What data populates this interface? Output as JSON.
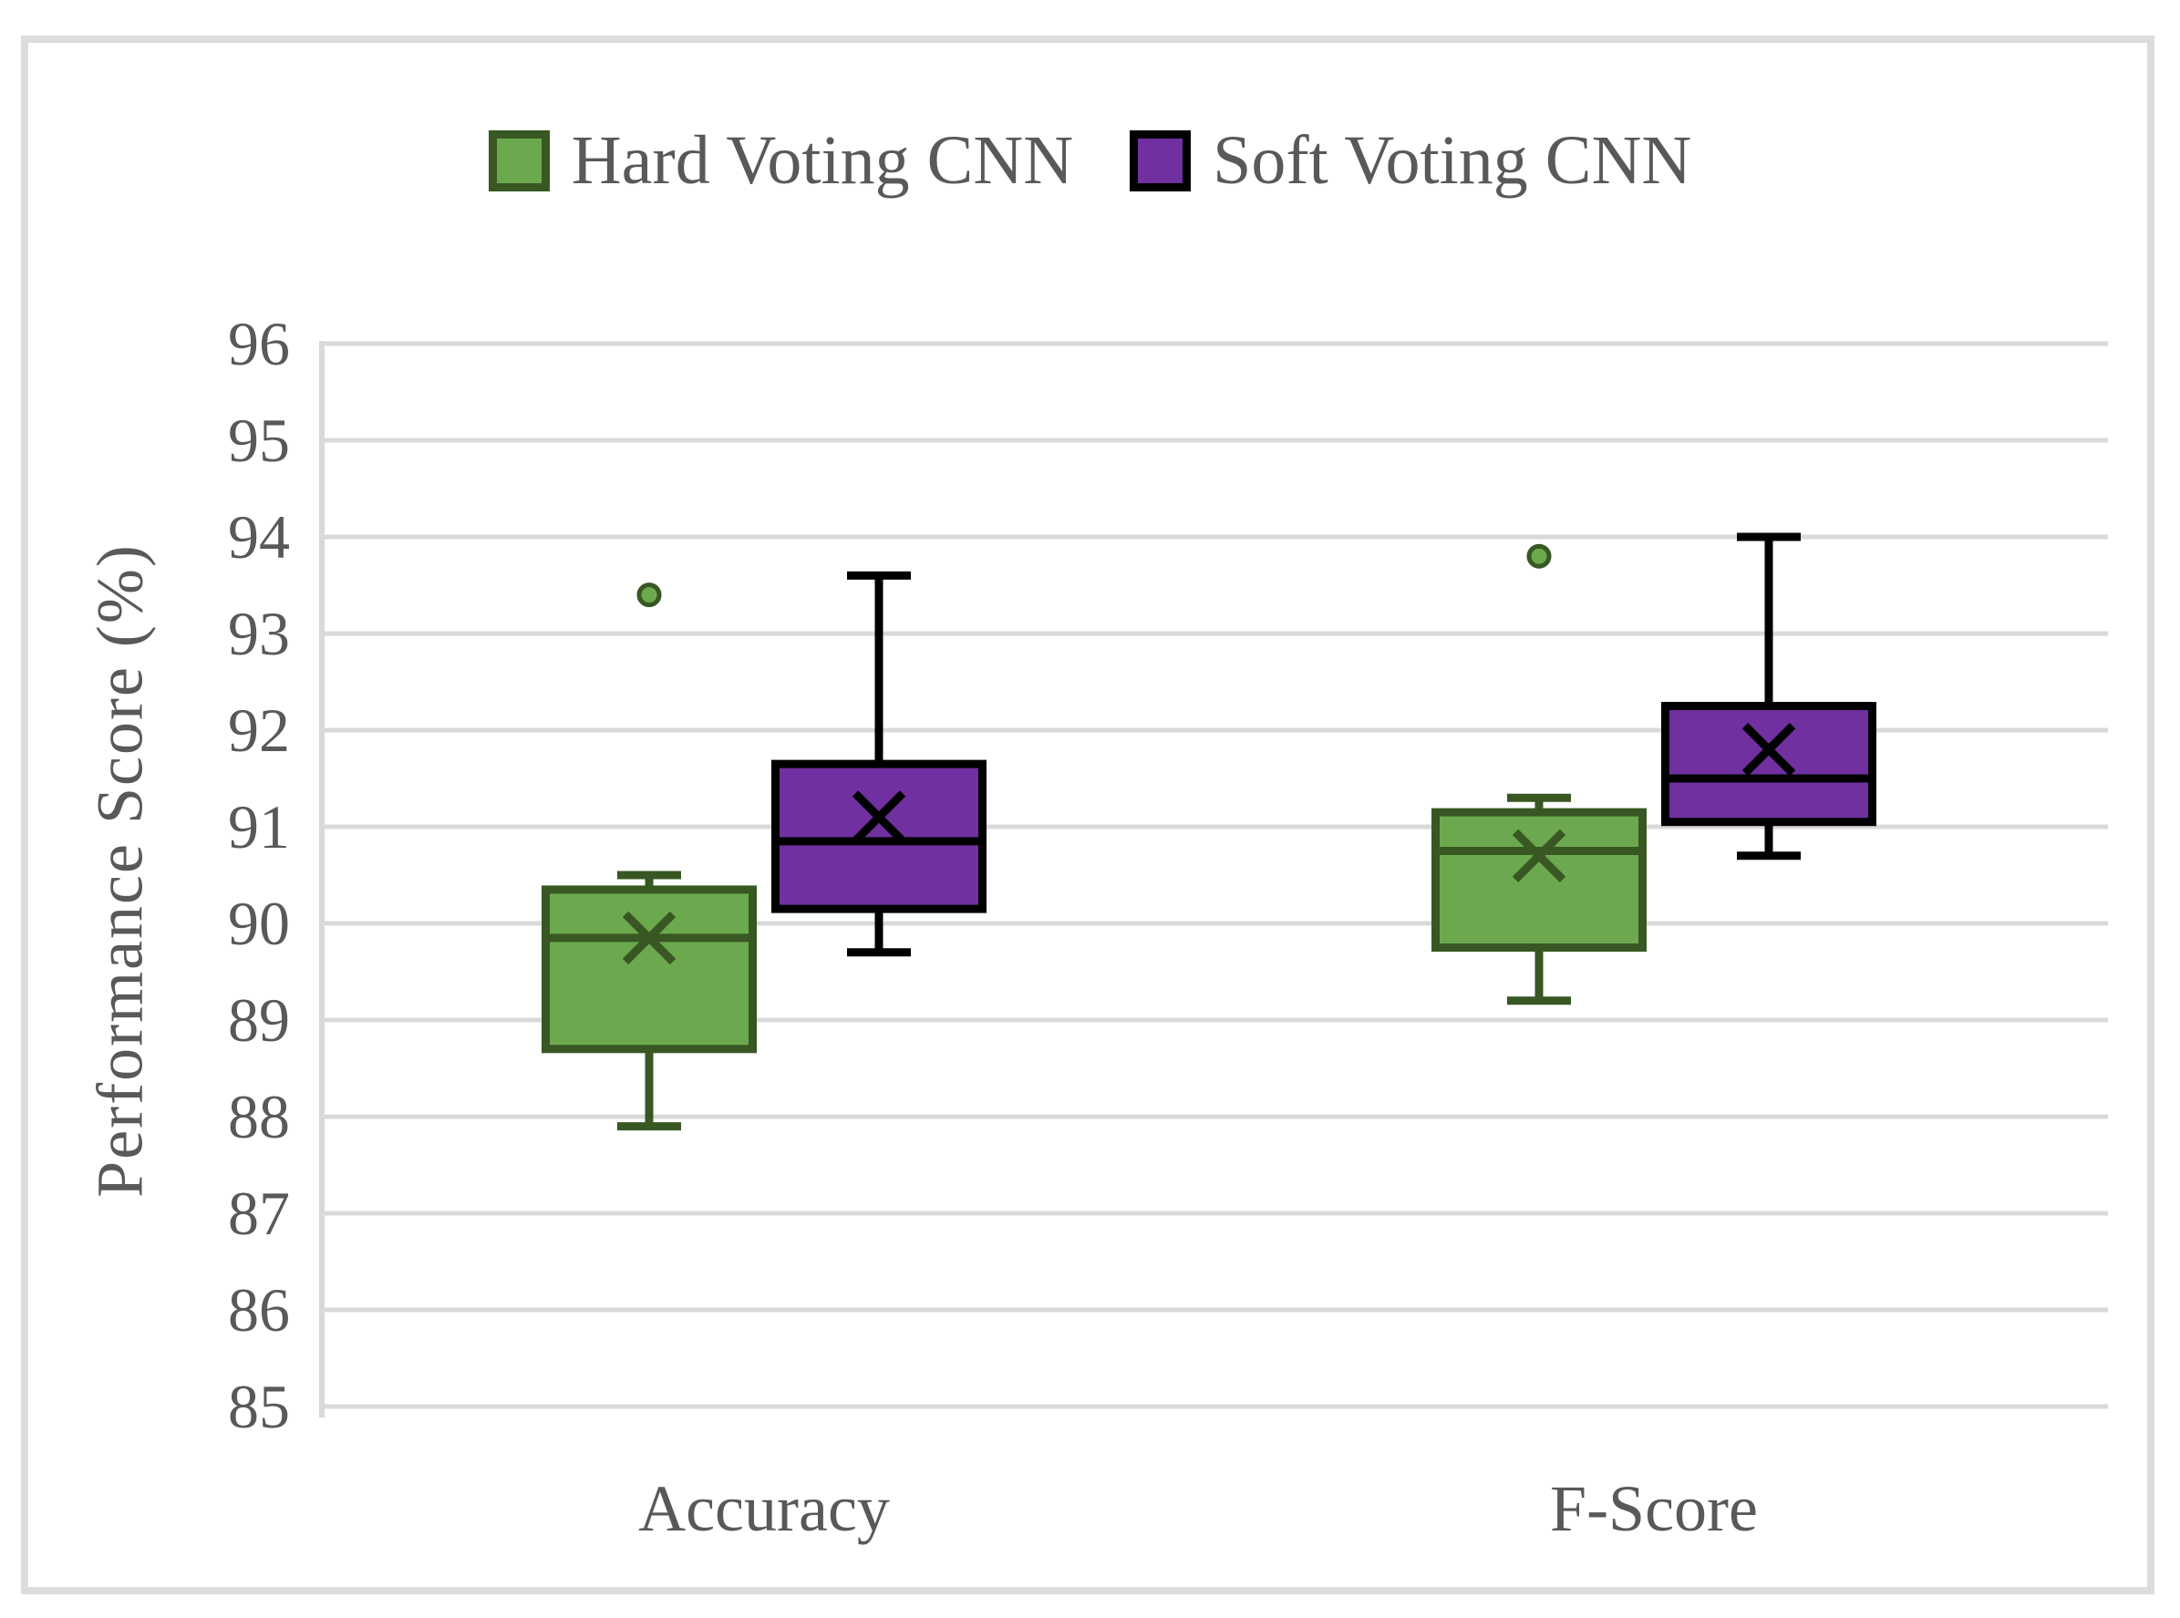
{
  "chart_data": {
    "type": "boxplot",
    "title": "",
    "ylabel": "Performance Score (%)",
    "xlabel": "",
    "ylim": [
      85,
      96
    ],
    "yticks": [
      96,
      95,
      94,
      93,
      92,
      91,
      90,
      89,
      88,
      87,
      86,
      85
    ],
    "grid": "horizontal",
    "legend_position": "top",
    "categories": [
      "Accuracy",
      "F-Score"
    ],
    "series": [
      {
        "name": "Hard Voting CNN",
        "fill": "#6CA94E",
        "edge": "#385723",
        "boxes": [
          {
            "category": "Accuracy",
            "whisker_low": 87.9,
            "q1": 88.7,
            "median": 89.85,
            "q3": 90.35,
            "whisker_high": 90.5,
            "mean": 89.85,
            "outliers": [
              93.4
            ]
          },
          {
            "category": "F-Score",
            "whisker_low": 89.2,
            "q1": 89.75,
            "median": 90.75,
            "q3": 91.15,
            "whisker_high": 91.3,
            "mean": 90.7,
            "outliers": [
              93.8
            ]
          }
        ]
      },
      {
        "name": "Soft Voting CNN",
        "fill": "#7030A0",
        "edge": "#000000",
        "boxes": [
          {
            "category": "Accuracy",
            "whisker_low": 89.7,
            "q1": 90.15,
            "median": 90.85,
            "q3": 91.65,
            "whisker_high": 93.6,
            "mean": 91.1,
            "outliers": []
          },
          {
            "category": "F-Score",
            "whisker_low": 90.7,
            "q1": 91.05,
            "median": 91.5,
            "q3": 92.25,
            "whisker_high": 94.0,
            "mean": 91.8,
            "outliers": []
          }
        ]
      }
    ],
    "colors": {
      "gridline": "#d9d9d9",
      "axis_line": "#d9d9d9",
      "text": "#595959",
      "figure_border": "#dcdcdc"
    }
  }
}
